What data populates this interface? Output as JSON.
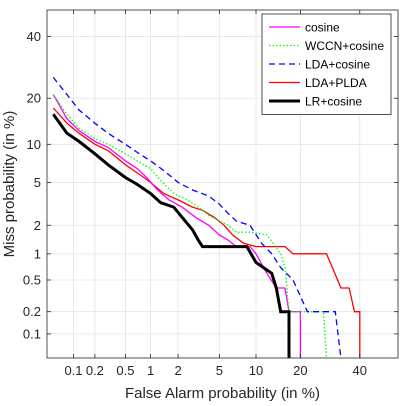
{
  "chart_data": {
    "type": "line",
    "title": "",
    "xlabel": "False Alarm probability (in %)",
    "ylabel": "Miss probability (in %)",
    "x_scale": "probit",
    "y_scale": "probit",
    "xlim": [
      0.04,
      55
    ],
    "ylim": [
      0.045,
      50
    ],
    "x_ticks": [
      0.1,
      0.2,
      0.5,
      1,
      2,
      5,
      10,
      20,
      40
    ],
    "x_tick_labels": [
      "0.1",
      "0.2",
      "0.5",
      "1",
      "2",
      "5",
      "10",
      "20",
      "40"
    ],
    "y_ticks": [
      0.1,
      0.2,
      0.5,
      1,
      2,
      5,
      10,
      20,
      40
    ],
    "y_tick_labels": [
      "0.1",
      "0.2",
      "0.5",
      "1",
      "2",
      "5",
      "10",
      "20",
      "40"
    ],
    "grid": true,
    "legend_position": "top-right",
    "series": [
      {
        "name": "cosine",
        "color": "#ff00ff",
        "dash": "solid",
        "width": 1.3,
        "points": [
          [
            0.05,
            21
          ],
          [
            0.08,
            15
          ],
          [
            0.12,
            12.5
          ],
          [
            0.2,
            10.5
          ],
          [
            0.3,
            9.5
          ],
          [
            0.5,
            7.5
          ],
          [
            0.7,
            6.5
          ],
          [
            0.9,
            5.5
          ],
          [
            1.2,
            4.3
          ],
          [
            1.6,
            3.5
          ],
          [
            2.2,
            3
          ],
          [
            3,
            2.4
          ],
          [
            4,
            2
          ],
          [
            5,
            1.6
          ],
          [
            6,
            1.4
          ],
          [
            7,
            1.2
          ],
          [
            9,
            1.2
          ],
          [
            10,
            1
          ],
          [
            12,
            0.6
          ],
          [
            14,
            0.4
          ],
          [
            16,
            0.4
          ],
          [
            17,
            0.2
          ],
          [
            20,
            0.2
          ],
          [
            20,
            0.045
          ]
        ]
      },
      {
        "name": "WCCN+cosine",
        "color": "#00ff00",
        "dash": "dotted",
        "width": 1.3,
        "points": [
          [
            0.05,
            21
          ],
          [
            0.08,
            16
          ],
          [
            0.12,
            13
          ],
          [
            0.2,
            11
          ],
          [
            0.3,
            10
          ],
          [
            0.5,
            8.5
          ],
          [
            0.7,
            7.5
          ],
          [
            1,
            6.5
          ],
          [
            1.3,
            5.2
          ],
          [
            1.8,
            4
          ],
          [
            2.5,
            3.5
          ],
          [
            3.2,
            3
          ],
          [
            4,
            2.5
          ],
          [
            5,
            2.2
          ],
          [
            6,
            2
          ],
          [
            7,
            1.7
          ],
          [
            9,
            1.7
          ],
          [
            12,
            1.6
          ],
          [
            15,
            1
          ],
          [
            16,
            0.7
          ],
          [
            17,
            0.2
          ],
          [
            27,
            0.2
          ],
          [
            28,
            0.045
          ]
        ]
      },
      {
        "name": "LDA+cosine",
        "color": "#0000ff",
        "dash": "dashed",
        "width": 1.3,
        "points": [
          [
            0.05,
            26
          ],
          [
            0.08,
            21
          ],
          [
            0.12,
            17
          ],
          [
            0.2,
            14
          ],
          [
            0.3,
            12
          ],
          [
            0.5,
            10
          ],
          [
            0.7,
            8.7
          ],
          [
            1,
            7.5
          ],
          [
            1.4,
            6.3
          ],
          [
            2,
            5
          ],
          [
            2.8,
            4.3
          ],
          [
            4,
            3.8
          ],
          [
            5,
            3.2
          ],
          [
            6,
            2.6
          ],
          [
            7,
            2.2
          ],
          [
            9,
            2
          ],
          [
            11,
            1.3
          ],
          [
            13,
            1
          ],
          [
            15,
            0.7
          ],
          [
            18,
            0.5
          ],
          [
            22,
            0.2
          ],
          [
            31,
            0.2
          ],
          [
            33,
            0.045
          ]
        ]
      },
      {
        "name": "LDA+PLDA",
        "color": "#ff0000",
        "dash": "solid",
        "width": 1.3,
        "points": [
          [
            0.05,
            17.5
          ],
          [
            0.08,
            14
          ],
          [
            0.12,
            12
          ],
          [
            0.2,
            10
          ],
          [
            0.3,
            9
          ],
          [
            0.5,
            7
          ],
          [
            0.7,
            6
          ],
          [
            1,
            5
          ],
          [
            1.4,
            4
          ],
          [
            2,
            3.5
          ],
          [
            2.8,
            3
          ],
          [
            3.5,
            2.8
          ],
          [
            4.5,
            2.4
          ],
          [
            5.5,
            2
          ],
          [
            6.5,
            1.6
          ],
          [
            8,
            1.3
          ],
          [
            10,
            1.2
          ],
          [
            13,
            1.2
          ],
          [
            16,
            1.2
          ],
          [
            18,
            1
          ],
          [
            28,
            1
          ],
          [
            30,
            0.7
          ],
          [
            33,
            0.4
          ],
          [
            36,
            0.4
          ],
          [
            38,
            0.2
          ],
          [
            40,
            0.2
          ],
          [
            40,
            0.045
          ]
        ]
      },
      {
        "name": "LR+cosine",
        "color": "#000000",
        "dash": "solid",
        "width": 3,
        "points": [
          [
            0.05,
            16
          ],
          [
            0.08,
            12
          ],
          [
            0.12,
            10.5
          ],
          [
            0.2,
            8.5
          ],
          [
            0.3,
            7
          ],
          [
            0.5,
            5.5
          ],
          [
            0.7,
            4.8
          ],
          [
            1,
            4
          ],
          [
            1.3,
            3.3
          ],
          [
            1.8,
            3
          ],
          [
            2.2,
            2.4
          ],
          [
            2.8,
            1.8
          ],
          [
            3.2,
            1.4
          ],
          [
            3.5,
            1.2
          ],
          [
            5,
            1.2
          ],
          [
            7,
            1.2
          ],
          [
            8.5,
            1.2
          ],
          [
            10,
            0.8
          ],
          [
            13,
            0.6
          ],
          [
            14,
            0.4
          ],
          [
            15,
            0.2
          ],
          [
            17,
            0.2
          ],
          [
            17,
            0.045
          ]
        ]
      }
    ]
  }
}
